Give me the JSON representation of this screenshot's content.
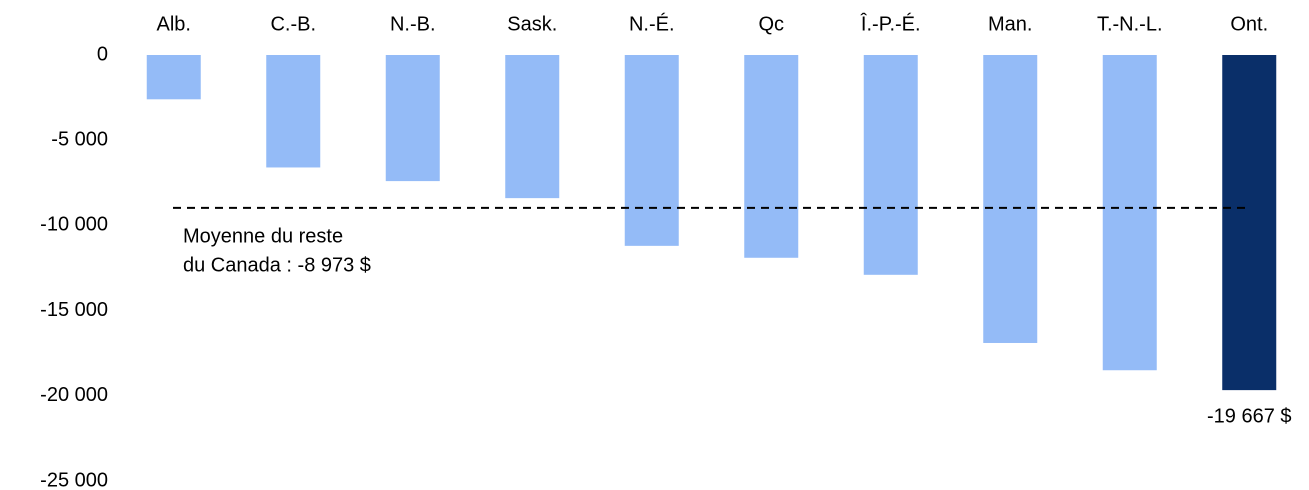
{
  "chart_data": {
    "type": "bar",
    "categories": [
      "Alb.",
      "C.-B.",
      "N.-B.",
      "Sask.",
      "N.-É.",
      "Qc",
      "Î.-P.-É.",
      "Man.",
      "T.-N.-L.",
      "Ont."
    ],
    "values": [
      -2600,
      -6600,
      -7400,
      -8400,
      -11200,
      -11900,
      -12900,
      -16900,
      -18500,
      -19667
    ],
    "value_labels": [
      null,
      null,
      null,
      null,
      null,
      null,
      null,
      null,
      null,
      "-19 667 $"
    ],
    "colors": [
      "#94bbf7",
      "#94bbf7",
      "#94bbf7",
      "#94bbf7",
      "#94bbf7",
      "#94bbf7",
      "#94bbf7",
      "#94bbf7",
      "#94bbf7",
      "#0a2f69"
    ],
    "ylim": [
      -25000,
      0
    ],
    "yticks": [
      0,
      {
        "value": -5000,
        "label": "-5 000"
      },
      {
        "value": -10000,
        "label": "-10 000"
      },
      {
        "value": -15000,
        "label": "-15 000"
      },
      {
        "value": -20000,
        "label": "-20 000"
      },
      {
        "value": -25000,
        "label": "-25 000"
      }
    ],
    "reference_line": {
      "value": -8973,
      "label_lines": [
        "Moyenne du reste",
        "du Canada : -8 973 $"
      ]
    }
  }
}
